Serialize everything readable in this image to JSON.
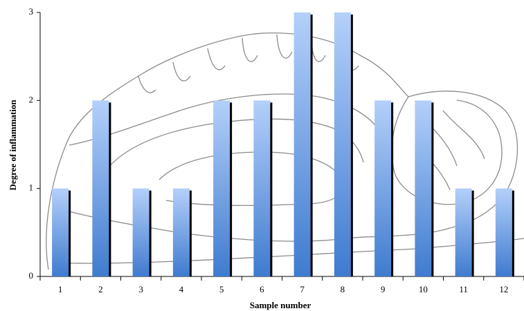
{
  "chart_data": {
    "type": "bar",
    "x_label": "Sample number",
    "y_label": "Degree of inflammation",
    "categories": [
      "1",
      "2",
      "3",
      "4",
      "5",
      "6",
      "7",
      "8",
      "9",
      "10",
      "11",
      "12"
    ],
    "values": [
      1,
      2,
      1,
      1,
      2,
      2,
      3,
      3,
      2,
      2,
      1,
      1
    ],
    "color": "#3f7bcf",
    "ylim": [
      0,
      3
    ],
    "yticks": [
      0,
      1,
      2,
      3
    ],
    "grid": false
  }
}
